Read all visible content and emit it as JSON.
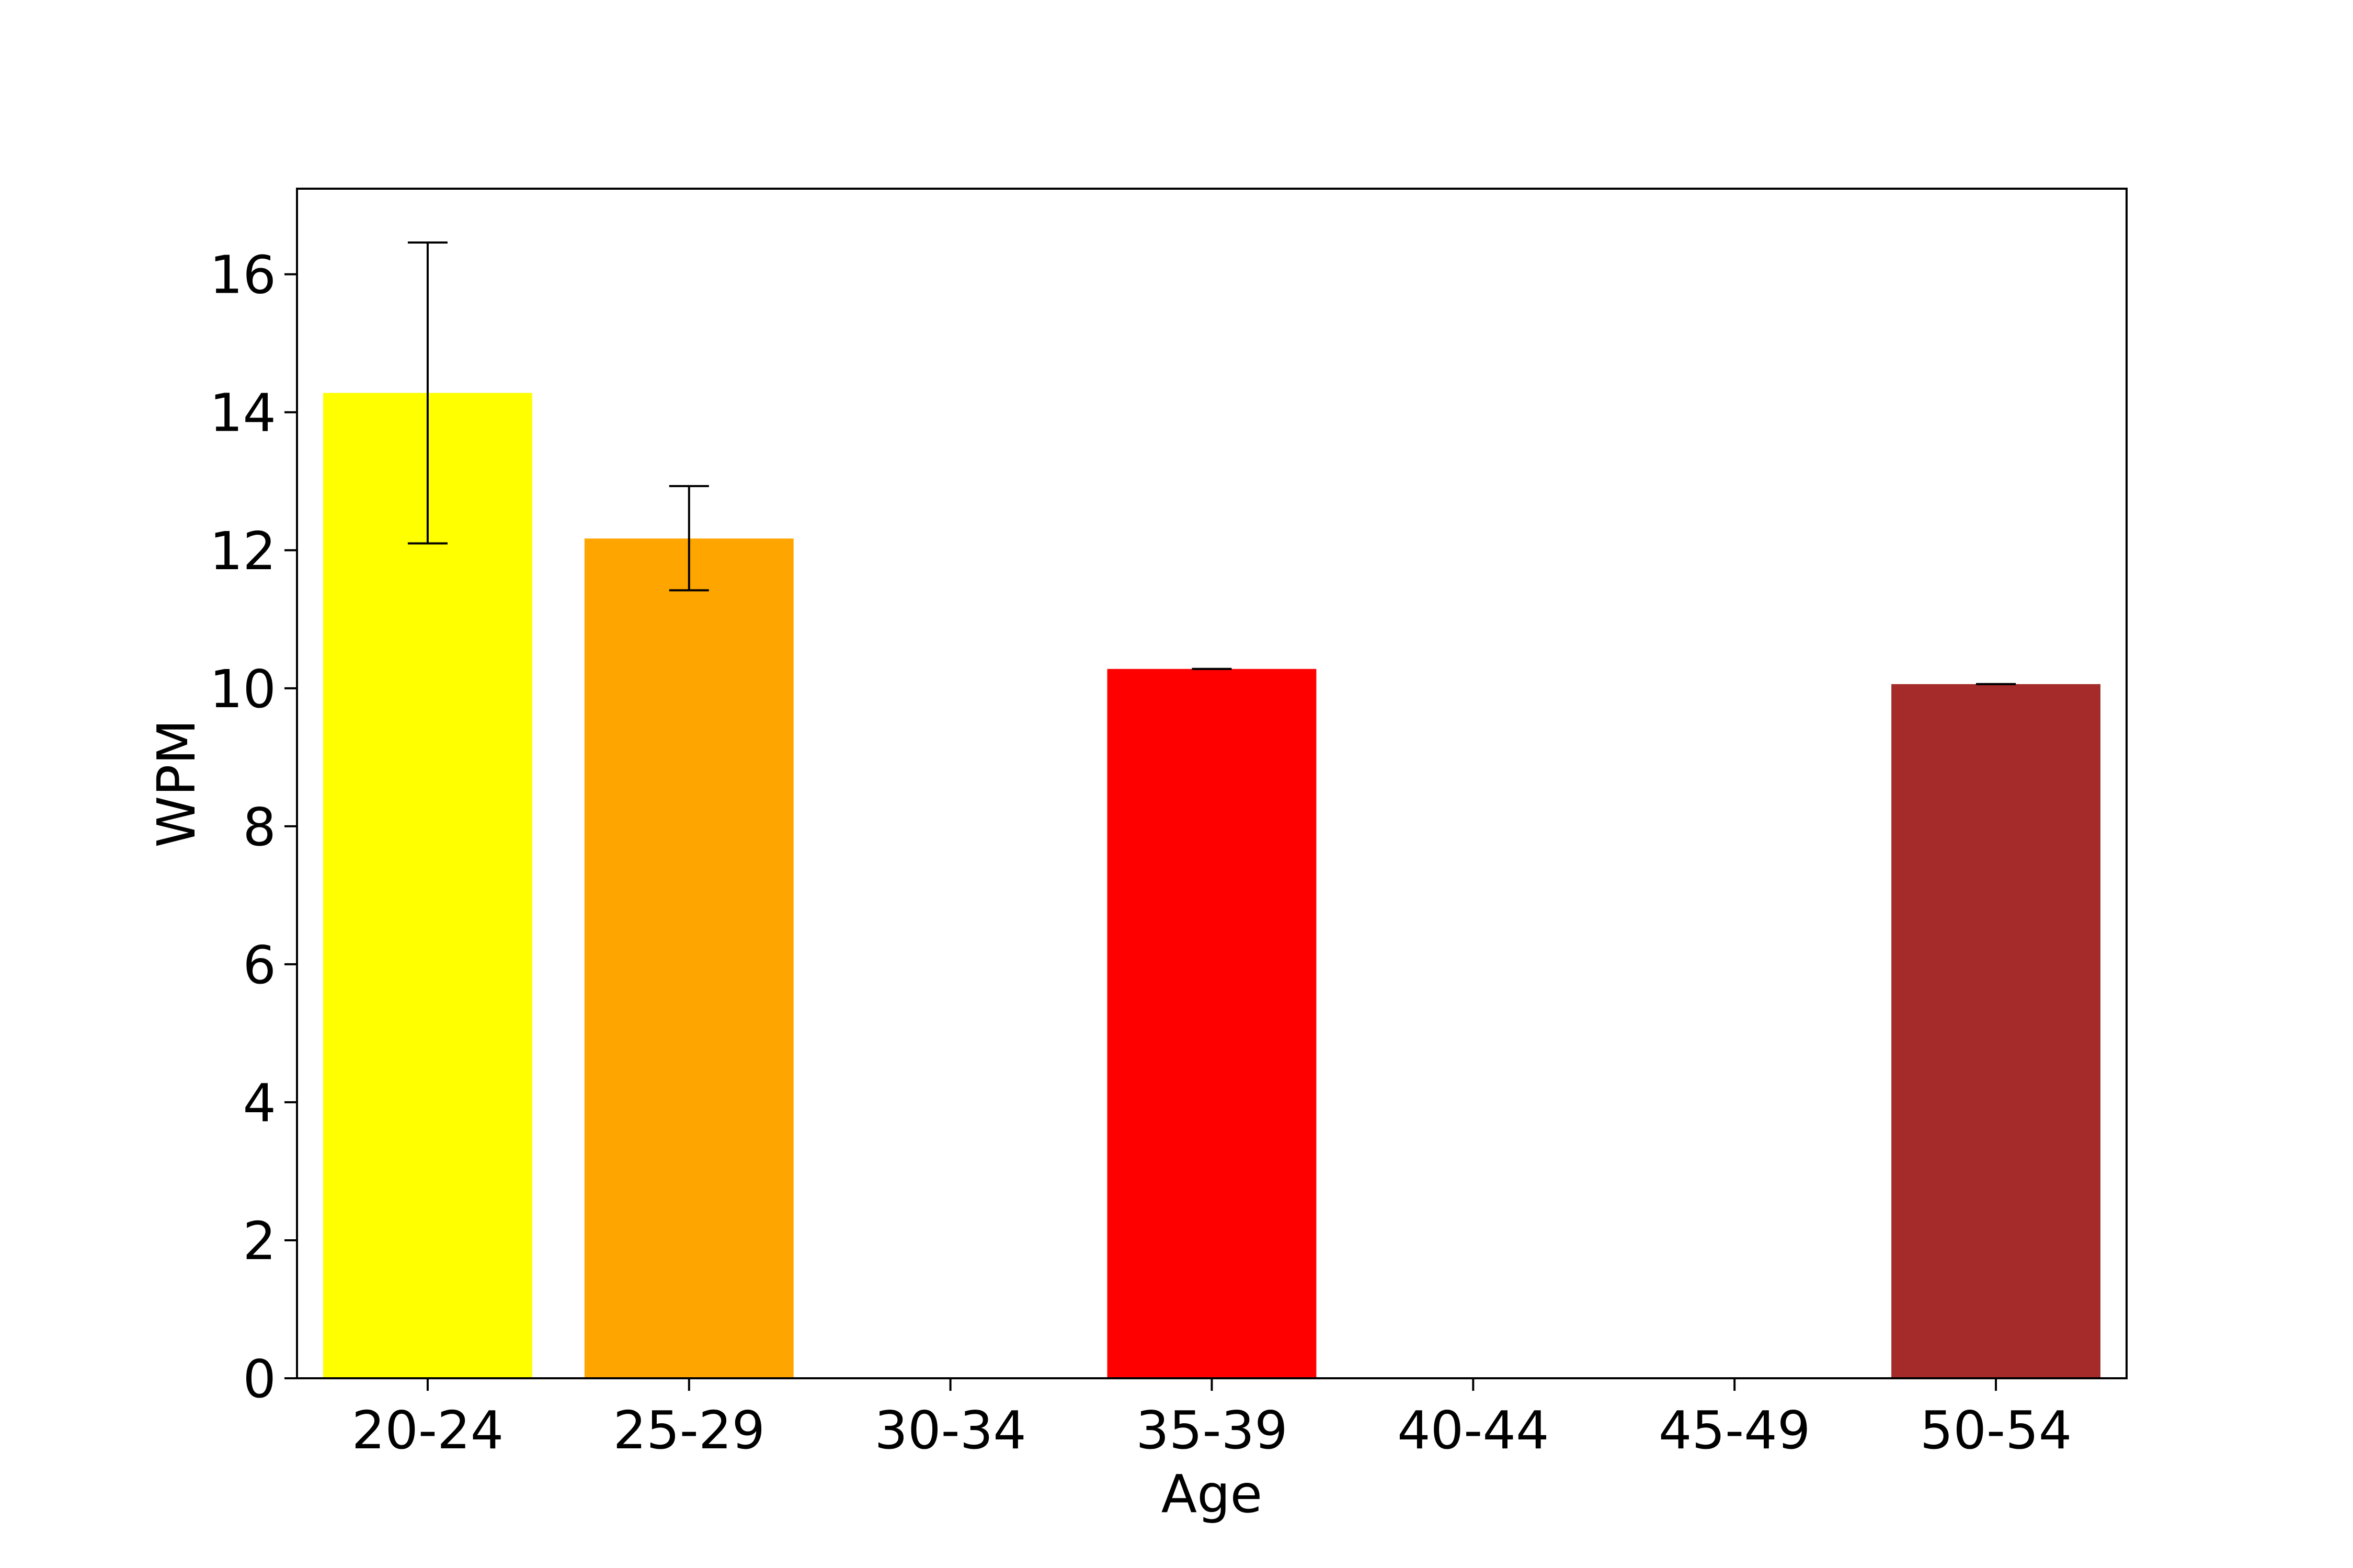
{
  "chart_data": {
    "type": "bar",
    "title": "",
    "xlabel": "Age",
    "ylabel": "WPM",
    "categories": [
      "20-24",
      "25-29",
      "30-34",
      "35-39",
      "40-44",
      "45-49",
      "50-54"
    ],
    "values": [
      14.28,
      12.17,
      0,
      10.28,
      0,
      0,
      10.06
    ],
    "error_low": [
      12.1,
      11.42,
      null,
      10.28,
      null,
      null,
      10.06
    ],
    "error_high": [
      16.46,
      12.93,
      null,
      10.28,
      null,
      null,
      10.06
    ],
    "colors": [
      "#ffff00",
      "#ffa500",
      "#ffffff",
      "#ff0000",
      "#ffffff",
      "#ffffff",
      "#a52a2a"
    ],
    "ylim": [
      0,
      17.24
    ],
    "yticks": [
      0,
      2,
      4,
      6,
      8,
      10,
      12,
      14,
      16
    ],
    "grid": false,
    "legend": "none"
  }
}
